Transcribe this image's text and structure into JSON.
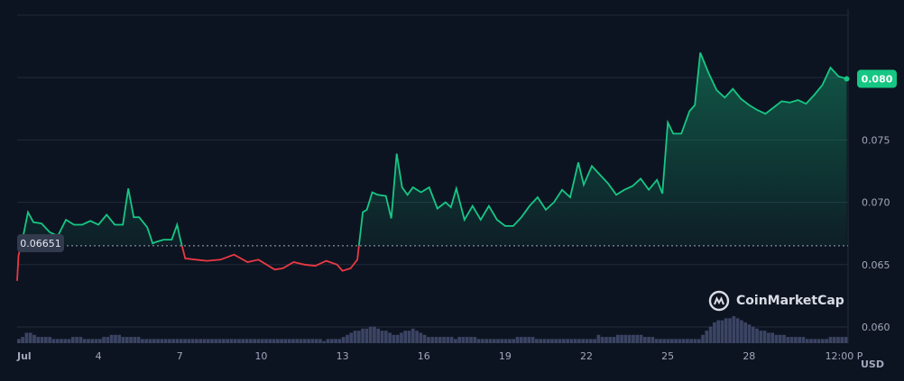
{
  "chart_data": {
    "type": "line",
    "currency": "USD",
    "open_price_label": "0.06651",
    "open_price": 0.06651,
    "current_price_label": "0.080",
    "current_price": 0.0799,
    "ylim": [
      0.0587,
      0.0855
    ],
    "yticks": [
      {
        "value": 0.06,
        "label": "0.060"
      },
      {
        "value": 0.065,
        "label": "0.065"
      },
      {
        "value": 0.07,
        "label": "0.070"
      },
      {
        "value": 0.075,
        "label": "0.075"
      }
    ],
    "xlim": [
      1,
      31.65
    ],
    "xticks": [
      {
        "value": 1,
        "label": "Jul",
        "bold": true
      },
      {
        "value": 4,
        "label": "4"
      },
      {
        "value": 7,
        "label": "7"
      },
      {
        "value": 10,
        "label": "10"
      },
      {
        "value": 13,
        "label": "13"
      },
      {
        "value": 16,
        "label": "16"
      },
      {
        "value": 19,
        "label": "19"
      },
      {
        "value": 22,
        "label": "22"
      },
      {
        "value": 25,
        "label": "25"
      },
      {
        "value": 28,
        "label": "28"
      },
      {
        "value": 31.5,
        "label": "12:00 P"
      }
    ],
    "colors": {
      "up": "#16c784",
      "down": "#ea3943",
      "volume": "#3b4463",
      "grid": "#222a3b",
      "background": "#0d1421"
    },
    "price": {
      "x": [
        1.0,
        1.05,
        1.1,
        1.15,
        1.4,
        1.6,
        1.9,
        2.2,
        2.5,
        2.8,
        3.1,
        3.4,
        3.7,
        4.0,
        4.3,
        4.6,
        4.9,
        5.1,
        5.3,
        5.5,
        5.8,
        6.0,
        6.1,
        6.4,
        6.7,
        6.9,
        7.0,
        7.2,
        7.6,
        8.0,
        8.5,
        9.0,
        9.5,
        9.9,
        10.2,
        10.5,
        10.8,
        11.2,
        11.6,
        12.0,
        12.4,
        12.8,
        13.0,
        13.3,
        13.55,
        13.75,
        13.9,
        14.1,
        14.3,
        14.6,
        14.8,
        15.0,
        15.2,
        15.4,
        15.6,
        15.9,
        16.2,
        16.5,
        16.8,
        17.0,
        17.2,
        17.5,
        17.8,
        18.1,
        18.4,
        18.7,
        19.0,
        19.3,
        19.6,
        19.9,
        20.2,
        20.5,
        20.8,
        21.1,
        21.4,
        21.7,
        21.9,
        22.2,
        22.5,
        22.8,
        23.1,
        23.4,
        23.7,
        24.0,
        24.3,
        24.6,
        24.8,
        25.0,
        25.2,
        25.5,
        25.8,
        26.0,
        26.2,
        26.5,
        26.8,
        27.1,
        27.4,
        27.7,
        28.0,
        28.3,
        28.6,
        28.9,
        29.2,
        29.5,
        29.8,
        30.1,
        30.4,
        30.7,
        31.0,
        31.3,
        31.6
      ],
      "y": [
        0.0637,
        0.0657,
        0.0662,
        0.0665,
        0.0692,
        0.0684,
        0.0683,
        0.0676,
        0.0673,
        0.0686,
        0.0682,
        0.0682,
        0.0685,
        0.0682,
        0.069,
        0.0682,
        0.0682,
        0.0711,
        0.0688,
        0.0688,
        0.068,
        0.0667,
        0.0668,
        0.067,
        0.067,
        0.0682,
        0.0672,
        0.0655,
        0.0654,
        0.0653,
        0.0654,
        0.0658,
        0.0652,
        0.0654,
        0.065,
        0.0646,
        0.0647,
        0.0652,
        0.065,
        0.0649,
        0.0653,
        0.065,
        0.0645,
        0.0647,
        0.0654,
        0.0692,
        0.0694,
        0.0708,
        0.0706,
        0.0705,
        0.0687,
        0.0739,
        0.0712,
        0.0706,
        0.0712,
        0.0708,
        0.0712,
        0.0695,
        0.07,
        0.0696,
        0.0711,
        0.0686,
        0.0697,
        0.0686,
        0.0697,
        0.0686,
        0.0681,
        0.0681,
        0.0688,
        0.0697,
        0.0704,
        0.0694,
        0.07,
        0.071,
        0.0704,
        0.0732,
        0.0714,
        0.0729,
        0.0722,
        0.0715,
        0.0706,
        0.071,
        0.0713,
        0.0719,
        0.071,
        0.0718,
        0.0707,
        0.0764,
        0.0755,
        0.0755,
        0.0773,
        0.0778,
        0.082,
        0.0804,
        0.079,
        0.0784,
        0.0791,
        0.0783,
        0.0778,
        0.0774,
        0.0771,
        0.0776,
        0.0781,
        0.078,
        0.0782,
        0.0779,
        0.0786,
        0.0794,
        0.0808,
        0.0801,
        0.0799
      ]
    },
    "volume": [
      2,
      3,
      5,
      5,
      4,
      3,
      3,
      3,
      3,
      2,
      2,
      2,
      2,
      2,
      3,
      3,
      3,
      2,
      2,
      2,
      2,
      2,
      3,
      3,
      4,
      4,
      4,
      3,
      3,
      3,
      3,
      3,
      2,
      2,
      2,
      2,
      2,
      2,
      2,
      2,
      2,
      2,
      2,
      2,
      2,
      2,
      2,
      2,
      2,
      2,
      2,
      2,
      2,
      2,
      2,
      2,
      2,
      2,
      2,
      2,
      2,
      2,
      2,
      2,
      2,
      2,
      2,
      2,
      2,
      2,
      2,
      2,
      2,
      2,
      2,
      2,
      2,
      2,
      2,
      1,
      2,
      2,
      2,
      2,
      3,
      4,
      5,
      6,
      6,
      7,
      7,
      8,
      8,
      7,
      6,
      6,
      5,
      4,
      4,
      5,
      6,
      6,
      7,
      6,
      5,
      4,
      3,
      3,
      3,
      3,
      3,
      3,
      3,
      2,
      3,
      3,
      3,
      3,
      3,
      2,
      2,
      2,
      2,
      2,
      2,
      2,
      2,
      2,
      2,
      3,
      3,
      3,
      3,
      3,
      2,
      2,
      2,
      2,
      2,
      2,
      2,
      2,
      2,
      2,
      2,
      2,
      2,
      2,
      2,
      2,
      4,
      3,
      3,
      3,
      3,
      4,
      4,
      4,
      4,
      4,
      4,
      4,
      3,
      3,
      3,
      2,
      2,
      2,
      2,
      2,
      2,
      2,
      2,
      2,
      2,
      2,
      2,
      4,
      6,
      8,
      10,
      11,
      11,
      12,
      12,
      13,
      12,
      11,
      10,
      9,
      8,
      7,
      6,
      6,
      5,
      5,
      4,
      4,
      4,
      3,
      3,
      3,
      3,
      3,
      2,
      2,
      2,
      2,
      2,
      2,
      3,
      3,
      3,
      3,
      3
    ]
  },
  "watermark": {
    "text": "CoinMarketCap",
    "icon": "coinmarketcap-logo"
  }
}
